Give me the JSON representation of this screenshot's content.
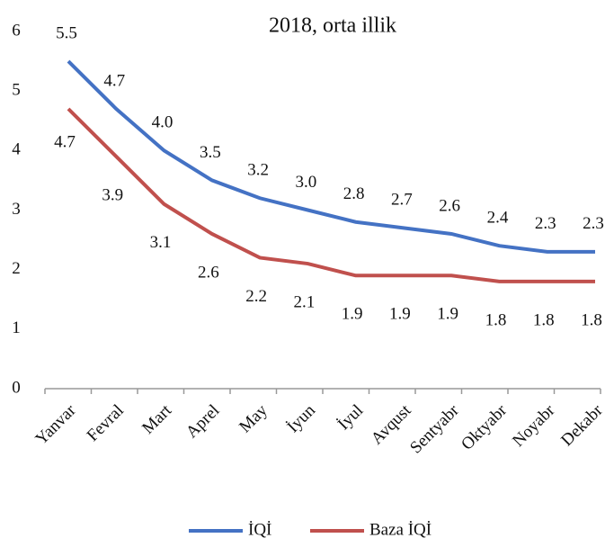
{
  "chart_data": {
    "type": "line",
    "title": "2018, orta illik",
    "categories": [
      "Yanvar",
      "Fevral",
      "Mart",
      "Aprel",
      "May",
      "İyun",
      "İyul",
      "Avqust",
      "Sentyabr",
      "Oktyabr",
      "Noyabr",
      "Dekabr"
    ],
    "series": [
      {
        "name": "İQİ",
        "color": "#4472c4",
        "values": [
          5.5,
          4.7,
          4.0,
          3.5,
          3.2,
          3.0,
          2.8,
          2.7,
          2.6,
          2.4,
          2.3,
          2.3
        ],
        "value_labels": [
          "5.5",
          "4.7",
          "4.0",
          "3.5",
          "3.2",
          "3.0",
          "2.8",
          "2.7",
          "2.6",
          "2.4",
          "2.3",
          "2.3"
        ]
      },
      {
        "name": "Baza İQİ",
        "color": "#c0504d",
        "values": [
          4.7,
          3.9,
          3.1,
          2.6,
          2.2,
          2.1,
          1.9,
          1.9,
          1.9,
          1.8,
          1.8,
          1.8
        ],
        "value_labels": [
          "4.7",
          "3.9",
          "3.1",
          "2.6",
          "2.2",
          "2.1",
          "1.9",
          "1.9",
          "1.9",
          "1.8",
          "1.8",
          "1.8"
        ]
      }
    ],
    "ylim": [
      0,
      6
    ],
    "yticks": [
      0,
      1,
      2,
      3,
      4,
      5,
      6
    ],
    "grid": false,
    "legend": "bottom"
  }
}
